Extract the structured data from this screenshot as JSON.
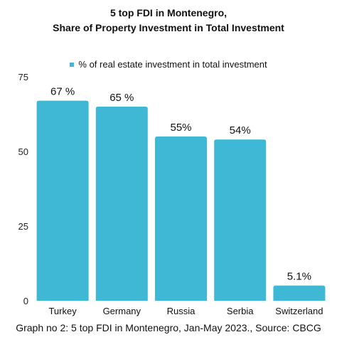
{
  "chart_data": {
    "type": "bar",
    "title_lines": [
      "5 top FDI in Montenegro,",
      "Share of Property Investment in Total Investment"
    ],
    "categories": [
      "Turkey",
      "Germany",
      "Russia",
      "Serbia",
      "Switzerland"
    ],
    "series": [
      {
        "name": "% of real estate investment in total investment",
        "values": [
          67,
          65,
          55,
          54,
          5.1
        ],
        "labels": [
          "67 %",
          "65 %",
          "55%",
          "54%",
          "5.1%"
        ]
      }
    ],
    "yticks": [
      0,
      25,
      50,
      75
    ],
    "ylim": [
      0,
      75
    ],
    "grid": false,
    "legend_position": "top",
    "bar_color": "#3fb8d6"
  },
  "caption": "Graph no 2: 5 top FDI in Montenegro, Jan-May 2023., Source: CBCG"
}
